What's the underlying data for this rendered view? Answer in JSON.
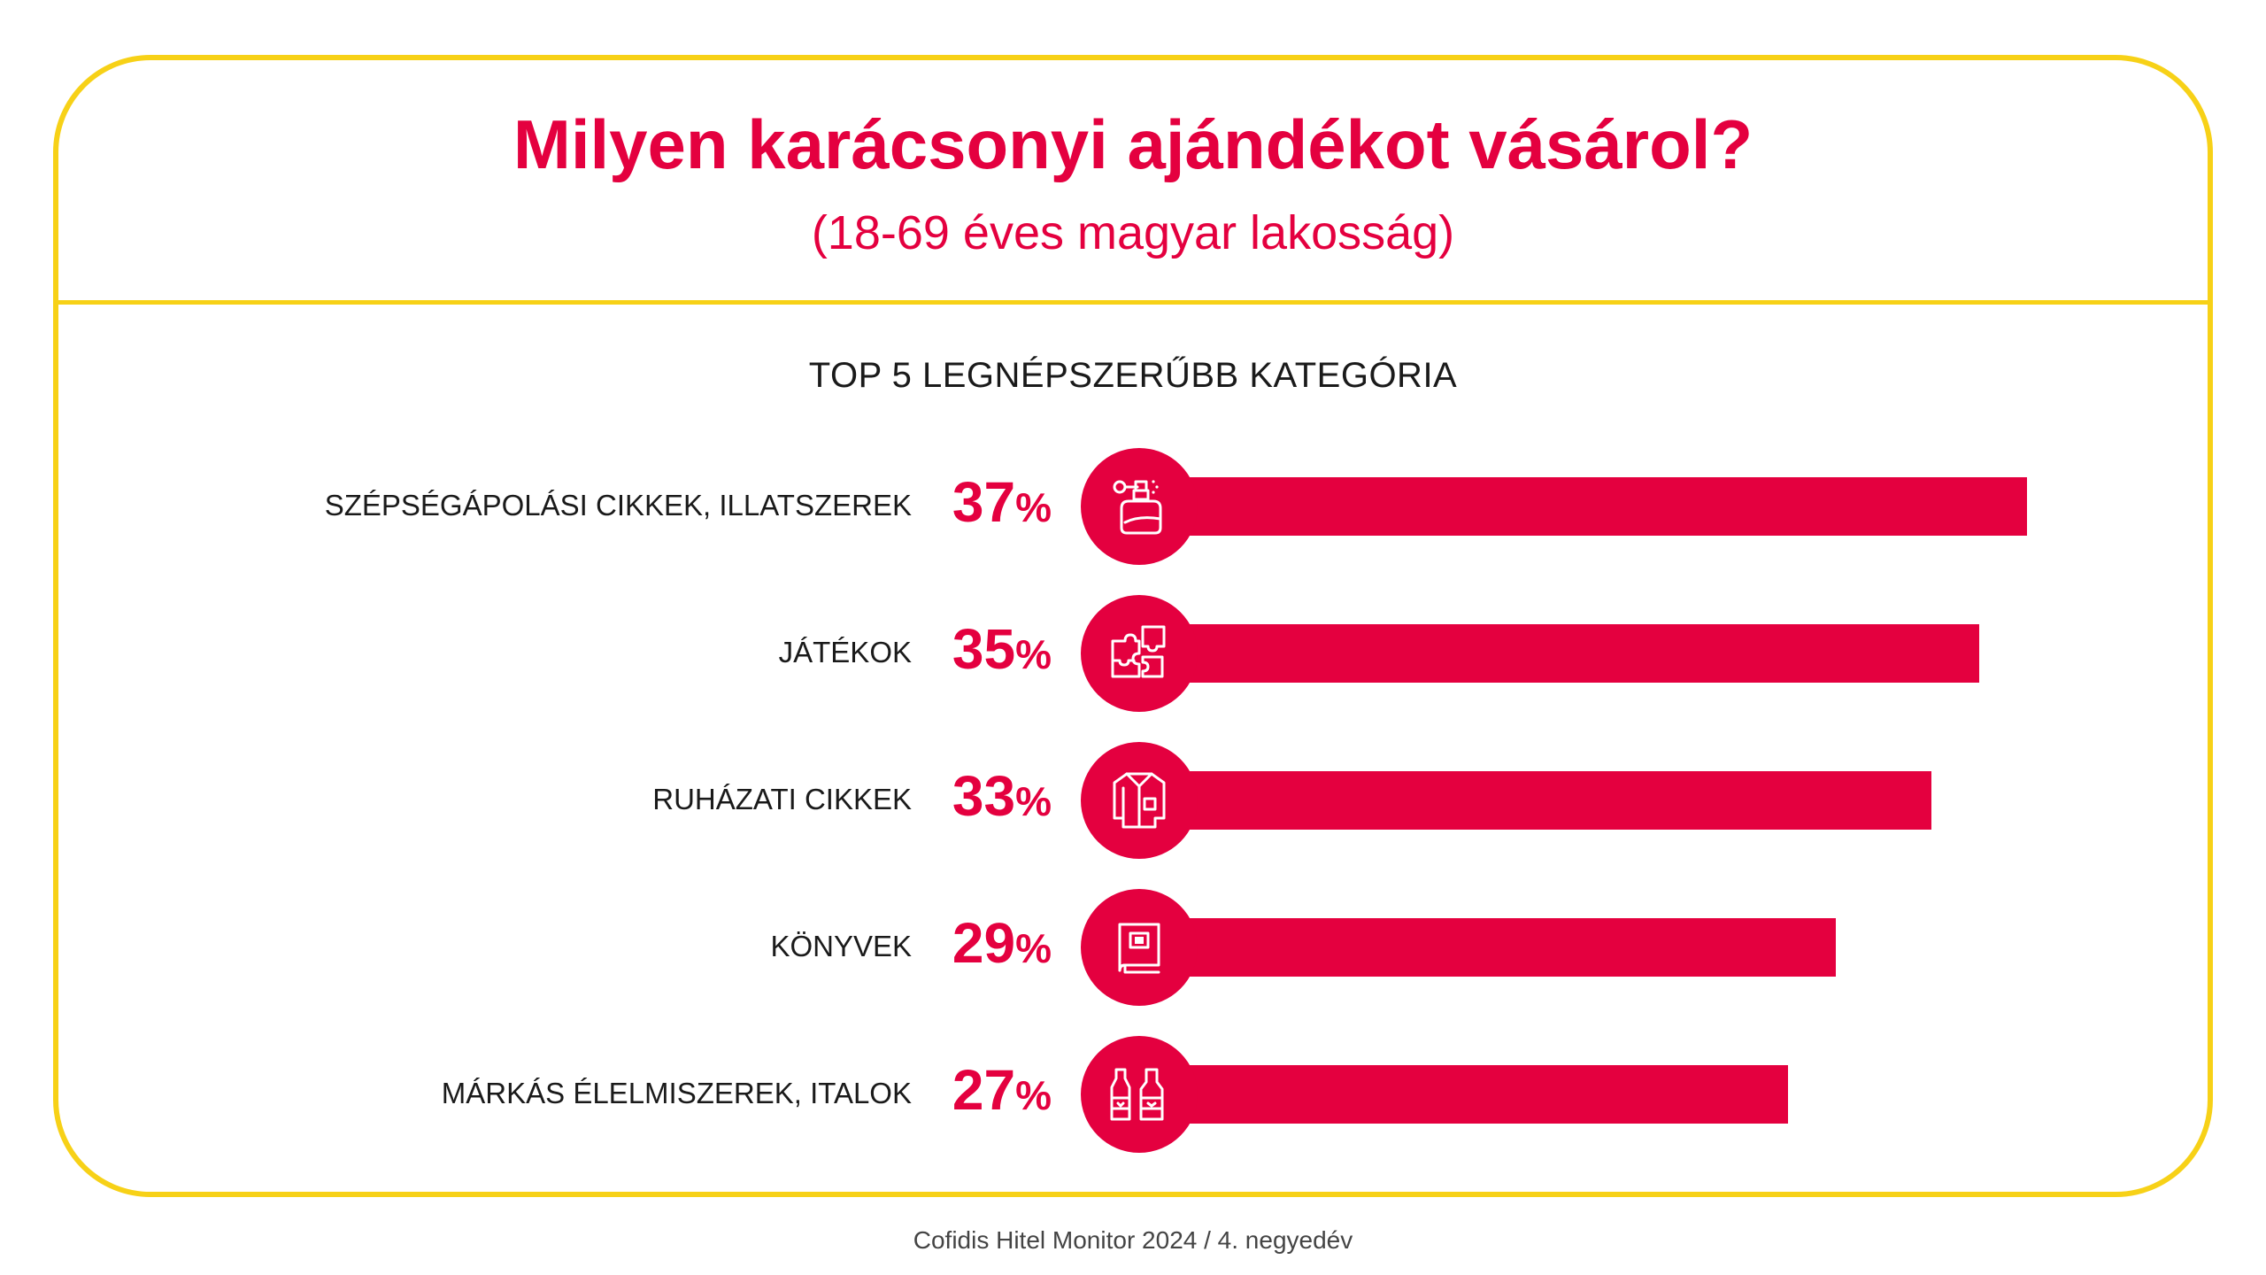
{
  "header": {
    "title": "Milyen karácsonyi ajándékot vásárol?",
    "subtitle": "(18-69 éves magyar lakosság)"
  },
  "section_title": "TOP 5 LEGNÉPSZERŰBB KATEGÓRIA",
  "source": "Cofidis Hitel Monitor 2024 / 4. negyedév",
  "colors": {
    "accent": "#e4003f",
    "frame": "#f7d117",
    "text": "#1a1a1a"
  },
  "chart_data": {
    "type": "bar",
    "orientation": "horizontal",
    "title": "TOP 5 LEGNÉPSZERŰBB KATEGÓRIA",
    "categories": [
      "SZÉPSÉGÁPOLÁSI CIKKEK, ILLATSZEREK",
      "JÁTÉKOK",
      "RUHÁZATI CIKKEK",
      "KÖNYVEK",
      "MÁRKÁS ÉLELMISZEREK, ITALOK"
    ],
    "values": [
      37,
      35,
      33,
      29,
      27
    ],
    "value_labels": [
      "37",
      "35",
      "33",
      "29",
      "27"
    ],
    "unit": "%",
    "icons": [
      "perfume-icon",
      "puzzle-icon",
      "shirt-icon",
      "book-icon",
      "bottles-icon"
    ]
  }
}
